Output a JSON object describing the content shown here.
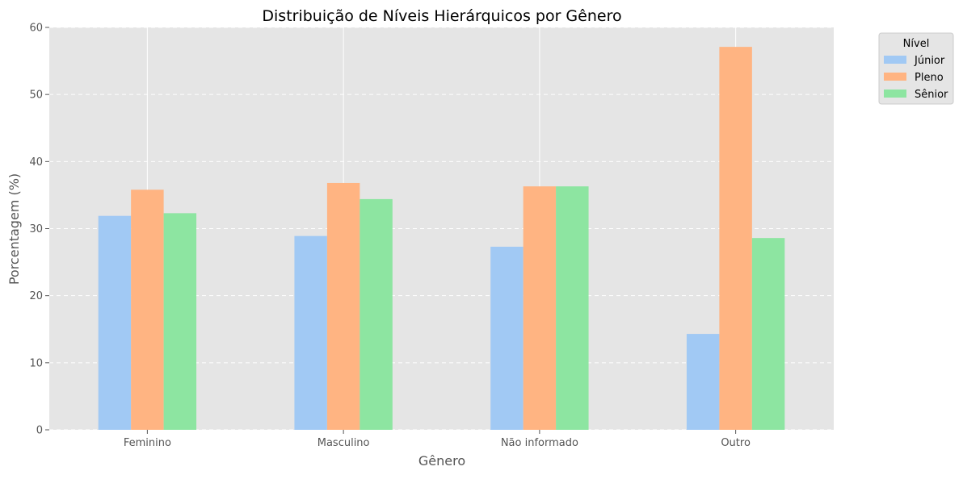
{
  "chart_data": {
    "type": "bar",
    "title": "Distribuição de Níveis Hierárquicos por Gênero",
    "xlabel": "Gênero",
    "ylabel": "Porcentagem (%)",
    "categories": [
      "Feminino",
      "Masculino",
      "Não informado",
      "Outro"
    ],
    "series": [
      {
        "name": "Júnior",
        "color": "#a1c9f4",
        "values": [
          31.9,
          28.9,
          27.3,
          14.3
        ]
      },
      {
        "name": "Pleno",
        "color": "#ffb482",
        "values": [
          35.8,
          36.8,
          36.3,
          57.1
        ]
      },
      {
        "name": "Sênior",
        "color": "#8de5a1",
        "values": [
          32.3,
          34.4,
          36.3,
          28.6
        ]
      }
    ],
    "ylim": [
      0,
      60
    ],
    "yticks": [
      0,
      10,
      20,
      30,
      40,
      50,
      60
    ],
    "grid": true,
    "legend": {
      "title": "Nível",
      "placement": "outside top-right"
    },
    "colors": {
      "plot_background": "#e5e5e5",
      "grid": "#ffffff",
      "text": "#555555"
    }
  }
}
